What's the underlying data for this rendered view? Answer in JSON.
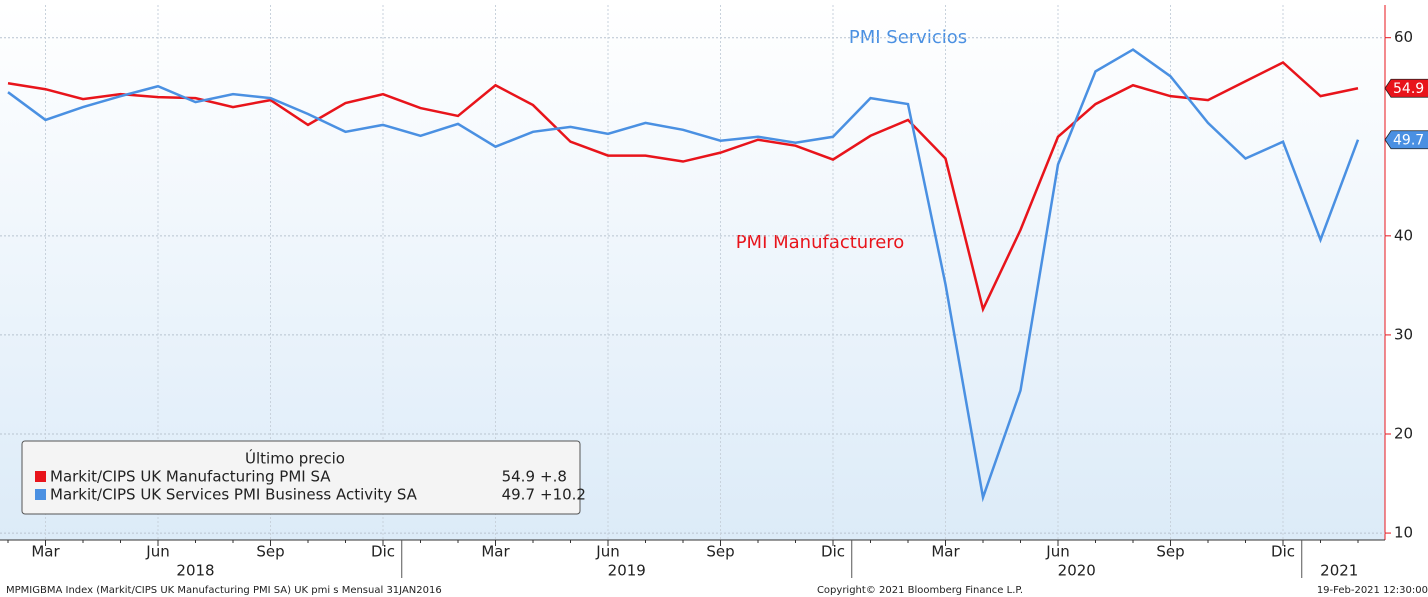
{
  "chart_data": {
    "type": "line",
    "categories": [
      null,
      "Mar",
      null,
      null,
      "Jun",
      null,
      null,
      "Sep",
      null,
      null,
      "Dic",
      null,
      null,
      "Mar",
      null,
      null,
      "Jun",
      null,
      null,
      "Sep",
      null,
      null,
      "Dic",
      null,
      null,
      "Mar",
      null,
      null,
      "Jun",
      null,
      null,
      "Sep",
      null,
      null,
      "Dic",
      null,
      null
    ],
    "x_groups": [
      {
        "label": "2018",
        "months": 11
      },
      {
        "label": "2019",
        "months": 12
      },
      {
        "label": "2020",
        "months": 12
      },
      {
        "label": "2021",
        "months": 2
      }
    ],
    "series": [
      {
        "name": "Markit/CIPS UK Manufacturing PMI SA",
        "color": "#e8141b",
        "values": [
          55.4,
          54.8,
          53.8,
          54.3,
          54.0,
          53.9,
          53.0,
          53.7,
          51.2,
          53.4,
          54.3,
          52.9,
          52.1,
          55.2,
          53.2,
          49.5,
          48.1,
          48.1,
          47.5,
          48.4,
          49.7,
          49.1,
          47.7,
          50.1,
          51.7,
          47.8,
          32.6,
          40.6,
          50.0,
          53.3,
          55.2,
          54.1,
          53.7,
          55.6,
          57.5,
          54.1,
          54.9
        ]
      },
      {
        "name": "Markit/CIPS UK Services PMI Business Activity SA",
        "color": "#4a90e2",
        "values": [
          54.5,
          51.7,
          53.0,
          54.1,
          55.1,
          53.5,
          54.3,
          53.9,
          52.3,
          50.5,
          51.2,
          50.1,
          51.3,
          49.0,
          50.5,
          51.0,
          50.3,
          51.4,
          50.7,
          49.6,
          50.0,
          49.4,
          50.0,
          53.9,
          53.3,
          35.1,
          13.6,
          24.4,
          47.2,
          56.6,
          58.8,
          56.1,
          51.4,
          47.8,
          49.5,
          39.6,
          49.7
        ]
      }
    ],
    "ylim": [
      9.3,
      63.3
    ],
    "yticks": [
      10,
      20,
      30,
      40,
      60
    ],
    "grid": true,
    "annotations": [
      "PMI Servicios",
      "PMI Manufacturero"
    ],
    "legend": {
      "title": "Último precio",
      "changes": [
        {
          "value": 0.8,
          "label": "+.8"
        },
        {
          "value": 10.2,
          "label": "+10.2"
        }
      ]
    },
    "footer": {
      "left": "MPMIGBMA Index (Markit/CIPS UK Manufacturing PMI SA) UK pmi s  Mensual 31JAN2016",
      "center": "Copyright© 2021 Bloomberg Finance L.P.",
      "right": "19-Feb-2021 12:30:00"
    }
  }
}
